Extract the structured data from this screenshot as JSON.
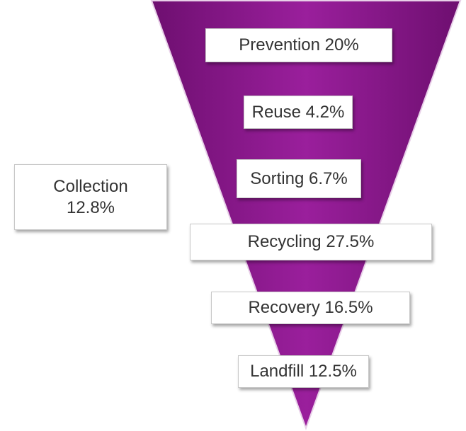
{
  "levels": [
    {
      "label": "Prevention 20%"
    },
    {
      "label": "Reuse 4.2%"
    },
    {
      "label": "Sorting 6.7%"
    },
    {
      "label": "Recycling 27.5%"
    },
    {
      "label": "Recovery 16.5%"
    },
    {
      "label": "Landfill 12.5%"
    }
  ],
  "side_box": {
    "lines": [
      "Collection",
      "12.8%"
    ]
  }
}
